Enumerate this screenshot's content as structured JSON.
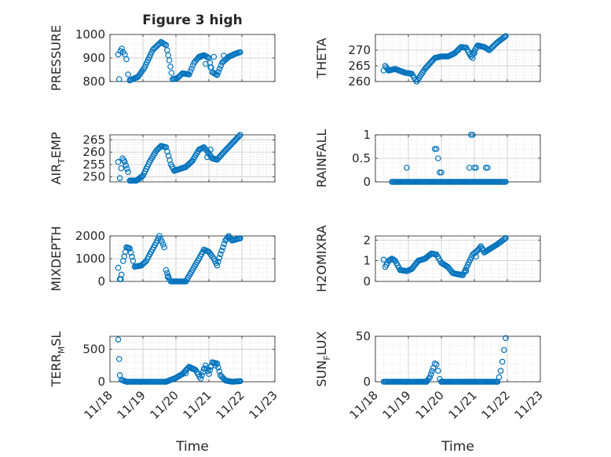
{
  "figure": {
    "title": "Figure 3 high"
  },
  "colors": {
    "marker": "#0072BD",
    "grid": "#d0d0d0",
    "axis": "#262626"
  },
  "x_axis": {
    "label": "Time",
    "ticks": [
      "11/18",
      "11/19",
      "11/20",
      "11/21",
      "11/22",
      "11/23"
    ],
    "range_days": [
      18,
      23
    ]
  },
  "chart_data": [
    {
      "type": "scatter",
      "ylabel": "PRESSURE",
      "ylim": [
        800,
        1000
      ],
      "yticks": [
        800,
        900,
        1000
      ],
      "segments": [
        [
          [
            18.25,
            915
          ],
          [
            18.28,
            810
          ],
          [
            18.32,
            930
          ],
          [
            18.36,
            940
          ],
          [
            18.4,
            925
          ],
          [
            18.45,
            915
          ],
          [
            18.5,
            895
          ],
          [
            18.55,
            830
          ],
          [
            18.6,
            805
          ]
        ],
        [
          [
            18.6,
            805
          ],
          [
            18.85,
            820
          ],
          [
            19.05,
            860
          ],
          [
            19.3,
            935
          ],
          [
            19.55,
            968
          ],
          [
            19.7,
            955
          ],
          [
            19.8,
            890
          ],
          [
            19.9,
            810
          ]
        ],
        [
          [
            19.9,
            810
          ],
          [
            20.05,
            815
          ],
          [
            20.2,
            835
          ],
          [
            20.4,
            830
          ],
          [
            20.55,
            880
          ],
          [
            20.7,
            905
          ],
          [
            20.85,
            912
          ],
          [
            21.0,
            900
          ],
          [
            21.1,
            840
          ],
          [
            21.25,
            828
          ]
        ],
        [
          [
            21.25,
            828
          ],
          [
            21.4,
            880
          ],
          [
            21.6,
            905
          ],
          [
            21.8,
            918
          ],
          [
            21.95,
            925
          ]
        ]
      ],
      "extra": [
        [
          20.75,
          905
        ],
        [
          20.9,
          875
        ],
        [
          21.05,
          860
        ],
        [
          21.15,
          905
        ],
        [
          21.45,
          910
        ]
      ]
    },
    {
      "type": "scatter",
      "ylabel": "THETA",
      "ylim": [
        260,
        275
      ],
      "yticks": [
        260,
        265,
        270
      ],
      "segments": [
        [
          [
            18.25,
            263.5
          ],
          [
            18.3,
            265
          ],
          [
            18.4,
            263.5
          ],
          [
            18.6,
            264
          ],
          [
            18.9,
            262.8
          ],
          [
            19.1,
            262.5
          ],
          [
            19.25,
            260
          ]
        ],
        [
          [
            19.25,
            260
          ],
          [
            19.5,
            264
          ],
          [
            19.8,
            267.5
          ],
          [
            20.0,
            268
          ],
          [
            20.2,
            268
          ],
          [
            20.4,
            269
          ],
          [
            20.6,
            271
          ],
          [
            20.75,
            270.8
          ],
          [
            20.9,
            268
          ]
        ],
        [
          [
            20.9,
            268
          ],
          [
            21.1,
            271.5
          ],
          [
            21.3,
            271
          ],
          [
            21.45,
            270
          ],
          [
            21.7,
            272.5
          ],
          [
            21.95,
            274.5
          ]
        ]
      ],
      "extra": [
        [
          20.95,
          267.5
        ],
        [
          21.0,
          269
        ]
      ]
    },
    {
      "type": "scatter",
      "ylabel": "AIR_TEMP",
      "ylim": [
        248,
        267
      ],
      "yticks": [
        250,
        255,
        260,
        265
      ],
      "segments": [
        [
          [
            18.25,
            256
          ],
          [
            18.3,
            249.5
          ],
          [
            18.38,
            257.5
          ],
          [
            18.45,
            256
          ],
          [
            18.55,
            252
          ],
          [
            18.6,
            248.5
          ],
          [
            18.8,
            248.5
          ],
          [
            19.0,
            250.5
          ],
          [
            19.2,
            256
          ],
          [
            19.4,
            260.5
          ],
          [
            19.55,
            262.5
          ],
          [
            19.7,
            262
          ],
          [
            19.85,
            255
          ],
          [
            19.95,
            252.5
          ]
        ],
        [
          [
            19.95,
            252.5
          ],
          [
            20.3,
            254
          ],
          [
            20.5,
            256.5
          ],
          [
            20.7,
            261
          ],
          [
            20.85,
            262
          ],
          [
            21.0,
            259.5
          ],
          [
            21.1,
            257.5
          ],
          [
            21.25,
            257
          ]
        ],
        [
          [
            21.25,
            257
          ],
          [
            21.45,
            260
          ],
          [
            21.7,
            263.5
          ],
          [
            21.95,
            267
          ]
        ]
      ],
      "extra": [
        [
          20.95,
          258
        ],
        [
          21.05,
          261
        ]
      ]
    },
    {
      "type": "scatter",
      "ylabel": "RAINFALL",
      "ylim": [
        0,
        1
      ],
      "yticks": [
        0,
        0.5,
        1
      ],
      "segments": [
        [
          [
            18.5,
            0
          ],
          [
            21.95,
            0
          ]
        ]
      ],
      "extra": [
        [
          18.95,
          0.3
        ],
        [
          19.8,
          0.7
        ],
        [
          19.85,
          0.7
        ],
        [
          19.9,
          0.5
        ],
        [
          19.95,
          0.2
        ],
        [
          20.0,
          0.2
        ],
        [
          20.85,
          0.3
        ],
        [
          20.9,
          1.0
        ],
        [
          20.95,
          1.0
        ],
        [
          21.0,
          0.3
        ],
        [
          21.05,
          0.3
        ],
        [
          21.35,
          0.3
        ],
        [
          21.4,
          0.3
        ]
      ]
    },
    {
      "type": "scatter",
      "ylabel": "MIXDEPTH",
      "ylim": [
        0,
        2000
      ],
      "yticks": [
        0,
        1000,
        2000
      ],
      "segments": [
        [
          [
            18.25,
            600
          ],
          [
            18.3,
            100
          ],
          [
            18.35,
            300
          ],
          [
            18.4,
            900
          ],
          [
            18.5,
            1500
          ],
          [
            18.6,
            1450
          ],
          [
            18.7,
            900
          ],
          [
            18.75,
            650
          ],
          [
            18.95,
            700
          ],
          [
            19.1,
            900
          ],
          [
            19.25,
            1300
          ],
          [
            19.4,
            1700
          ],
          [
            19.5,
            2000
          ],
          [
            19.65,
            1500
          ],
          [
            19.7,
            500
          ],
          [
            19.8,
            100
          ],
          [
            19.85,
            0
          ]
        ],
        [
          [
            19.85,
            0
          ],
          [
            20.3,
            0
          ]
        ],
        [
          [
            20.3,
            0
          ],
          [
            20.5,
            500
          ],
          [
            20.7,
            1000
          ],
          [
            20.85,
            1400
          ],
          [
            21.0,
            1300
          ],
          [
            21.15,
            1000
          ],
          [
            21.25,
            700
          ],
          [
            21.35,
            1200
          ],
          [
            21.5,
            1800
          ],
          [
            21.6,
            2000
          ],
          [
            21.7,
            1800
          ],
          [
            21.95,
            1900
          ]
        ]
      ],
      "extra": [
        [
          18.33,
          100
        ],
        [
          19.75,
          200
        ]
      ]
    },
    {
      "type": "scatter",
      "ylabel": "H2OMIXRA",
      "ylim": [
        0,
        2.2
      ],
      "yticks": [
        0,
        1,
        2
      ],
      "segments": [
        [
          [
            18.25,
            1.05
          ],
          [
            18.3,
            0.7
          ],
          [
            18.4,
            1.0
          ],
          [
            18.5,
            1.1
          ],
          [
            18.6,
            1.0
          ],
          [
            18.75,
            0.55
          ],
          [
            18.95,
            0.5
          ],
          [
            19.1,
            0.6
          ],
          [
            19.3,
            1.0
          ],
          [
            19.5,
            1.1
          ],
          [
            19.7,
            1.35
          ],
          [
            19.85,
            1.3
          ],
          [
            20.0,
            0.9
          ],
          [
            20.2,
            0.7
          ],
          [
            20.35,
            0.4
          ],
          [
            20.5,
            0.35
          ]
        ],
        [
          [
            20.5,
            0.35
          ],
          [
            20.65,
            0.3
          ],
          [
            20.8,
            0.8
          ],
          [
            20.95,
            1.3
          ],
          [
            21.1,
            1.5
          ],
          [
            21.2,
            1.7
          ],
          [
            21.3,
            1.4
          ],
          [
            21.5,
            1.6
          ],
          [
            21.7,
            1.8
          ],
          [
            21.95,
            2.1
          ]
        ]
      ],
      "extra": [
        [
          20.75,
          0.5
        ],
        [
          21.05,
          1.2
        ]
      ]
    },
    {
      "type": "scatter",
      "ylabel": "TERR_MSL",
      "ylim": [
        0,
        700
      ],
      "yticks": [
        0,
        500
      ],
      "segments": [
        [
          [
            18.25,
            650
          ],
          [
            18.28,
            350
          ],
          [
            18.3,
            100
          ],
          [
            18.35,
            30
          ],
          [
            18.5,
            0
          ]
        ],
        [
          [
            18.5,
            0
          ],
          [
            19.7,
            0
          ]
        ],
        [
          [
            19.7,
            0
          ],
          [
            20.0,
            60
          ],
          [
            20.2,
            120
          ],
          [
            20.4,
            230
          ],
          [
            20.6,
            180
          ],
          [
            20.75,
            50
          ],
          [
            20.9,
            250
          ],
          [
            21.0,
            120
          ],
          [
            21.1,
            300
          ],
          [
            21.25,
            280
          ],
          [
            21.35,
            100
          ],
          [
            21.5,
            20
          ],
          [
            21.7,
            0
          ],
          [
            21.95,
            10
          ]
        ]
      ],
      "extra": [
        [
          20.3,
          130
        ],
        [
          20.5,
          200
        ],
        [
          20.85,
          200
        ],
        [
          21.05,
          230
        ],
        [
          21.2,
          250
        ]
      ]
    },
    {
      "type": "scatter",
      "ylabel": "SUN_FLUX",
      "ylim": [
        0,
        50
      ],
      "yticks": [
        0,
        50
      ],
      "segments": [
        [
          [
            18.25,
            0
          ],
          [
            19.55,
            0
          ]
        ],
        [
          [
            19.55,
            0
          ],
          [
            19.65,
            5
          ],
          [
            19.75,
            15
          ],
          [
            19.8,
            20
          ],
          [
            19.85,
            19
          ],
          [
            19.9,
            12
          ],
          [
            19.95,
            3
          ],
          [
            20.0,
            0
          ]
        ],
        [
          [
            20.0,
            0
          ],
          [
            21.7,
            0
          ]
        ],
        [
          [
            21.7,
            0
          ],
          [
            21.75,
            5
          ],
          [
            21.8,
            12
          ],
          [
            21.85,
            22
          ],
          [
            21.9,
            35
          ],
          [
            21.95,
            48
          ]
        ]
      ],
      "extra": [
        [
          20.85,
          0
        ],
        [
          21.0,
          0
        ]
      ]
    }
  ]
}
